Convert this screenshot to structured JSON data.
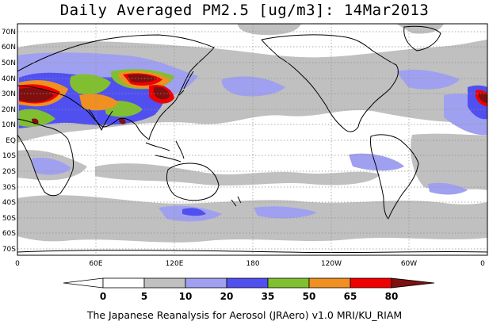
{
  "title": "Daily Averaged PM2.5 [ug/m3]: 14Mar2013",
  "footer": "The Japanese Reanalysis for Aerosol (JRAero) v1.0 MRI/KU_RIAM",
  "axes": {
    "lat_labels": [
      "70N",
      "60N",
      "50N",
      "40N",
      "30N",
      "20N",
      "10N",
      "EQ",
      "10S",
      "20S",
      "30S",
      "40S",
      "50S",
      "60S",
      "70S"
    ],
    "lon_labels": [
      "0",
      "60E",
      "120E",
      "180",
      "120W",
      "60W",
      "0"
    ]
  },
  "legend": {
    "ticks": [
      "0",
      "5",
      "10",
      "20",
      "35",
      "50",
      "65",
      "80"
    ],
    "colors": [
      "#ffffff",
      "#c0c0c0",
      "#a0a0f0",
      "#5050f0",
      "#80c030",
      "#f09020",
      "#f00000",
      "#801010"
    ]
  },
  "colors": {
    "land_outline": "#000000",
    "grid": "#909090"
  }
}
